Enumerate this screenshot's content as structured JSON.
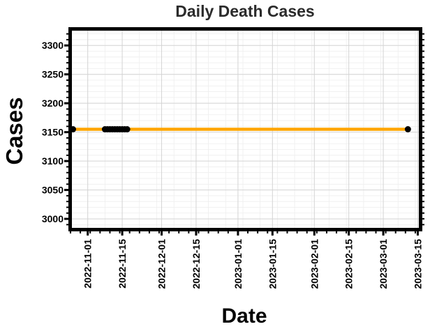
{
  "chart_data": {
    "type": "line",
    "title": "Daily Death Cases",
    "xlabel": "Date",
    "ylabel": "Cases",
    "x_ticks": [
      "2022-11-01",
      "2022-11-15",
      "2022-12-01",
      "2022-12-15",
      "2023-01-01",
      "2023-01-15",
      "2023-02-01",
      "2023-02-15",
      "2023-03-01",
      "2023-03-15"
    ],
    "y_ticks": [
      3000,
      3050,
      3100,
      3150,
      3200,
      3250,
      3300
    ],
    "xlim": [
      "2022-10-25",
      "2023-03-16"
    ],
    "ylim": [
      2982,
      3328
    ],
    "grid": true,
    "series": [
      {
        "color": "#FFA500",
        "marker_color": "#000000",
        "points": [
          {
            "x": "2022-10-26",
            "y": 3155
          },
          {
            "x": "2022-11-08",
            "y": 3155
          },
          {
            "x": "2022-11-09",
            "y": 3155
          },
          {
            "x": "2022-11-10",
            "y": 3155
          },
          {
            "x": "2022-11-11",
            "y": 3155
          },
          {
            "x": "2022-11-12",
            "y": 3155
          },
          {
            "x": "2022-11-13",
            "y": 3155
          },
          {
            "x": "2022-11-14",
            "y": 3155
          },
          {
            "x": "2022-11-15",
            "y": 3155
          },
          {
            "x": "2022-11-16",
            "y": 3155
          },
          {
            "x": "2022-11-17",
            "y": 3155
          },
          {
            "x": "2023-03-11",
            "y": 3155
          }
        ]
      }
    ]
  }
}
